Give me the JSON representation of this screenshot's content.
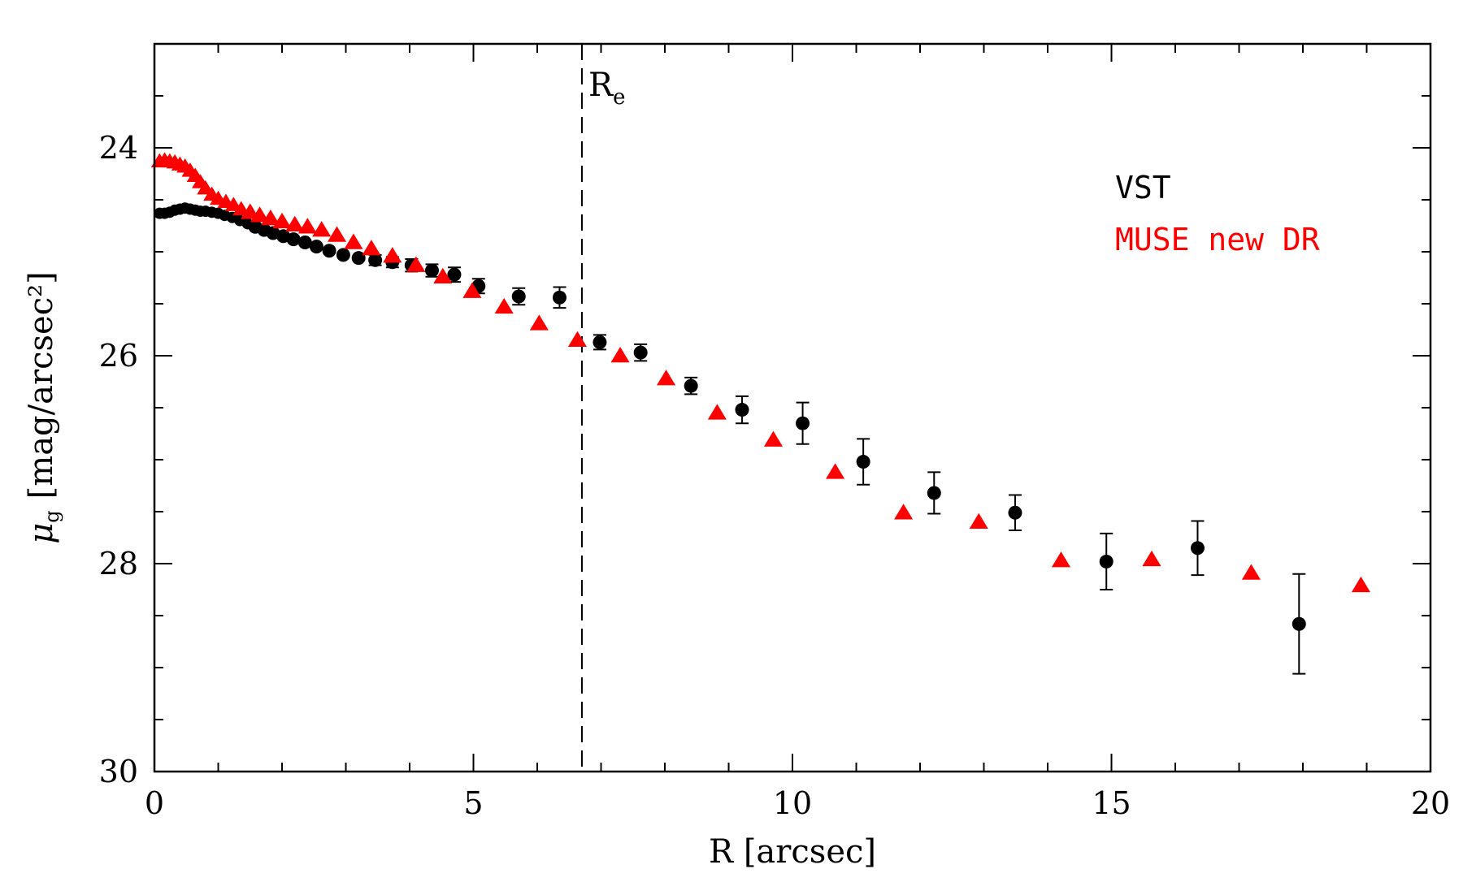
{
  "chart_data": {
    "type": "scatter",
    "title": "",
    "xlabel": "R [arcsec]",
    "ylabel_symbol": "μ",
    "ylabel_subscript": "g",
    "ylabel_units": "[mag/arcsec²]",
    "xlim": [
      0,
      20
    ],
    "ylim": [
      30,
      23
    ],
    "x_ticks_major": [
      0,
      5,
      10,
      15,
      20
    ],
    "x_tick_labels": [
      "0",
      "5",
      "10",
      "15",
      "20"
    ],
    "y_ticks_major": [
      24,
      26,
      28,
      30
    ],
    "y_tick_labels": [
      "24",
      "26",
      "28",
      "30"
    ],
    "reference_line": {
      "x": 6.7,
      "label": "R",
      "label_subscript": "e",
      "style": "dashed"
    },
    "legend_placement": "top-right",
    "series": [
      {
        "name": "VST",
        "color": "#000000",
        "marker": "circle",
        "x": [
          0.08,
          0.16,
          0.24,
          0.32,
          0.4,
          0.48,
          0.56,
          0.64,
          0.72,
          0.8,
          0.9,
          1.0,
          1.1,
          1.22,
          1.34,
          1.46,
          1.58,
          1.72,
          1.86,
          2.02,
          2.18,
          2.36,
          2.54,
          2.74,
          2.96,
          3.2,
          3.46,
          3.73,
          4.03,
          4.35,
          4.7,
          5.08,
          5.71,
          6.35,
          6.98,
          7.62,
          8.41,
          9.21,
          10.16,
          11.11,
          12.22,
          13.49,
          14.92,
          16.35,
          17.94
        ],
        "y": [
          24.63,
          24.63,
          24.62,
          24.6,
          24.59,
          24.58,
          24.59,
          24.6,
          24.61,
          24.61,
          24.62,
          24.63,
          24.65,
          24.67,
          24.7,
          24.73,
          24.76,
          24.79,
          24.82,
          24.85,
          24.88,
          24.91,
          24.95,
          24.99,
          25.03,
          25.06,
          25.08,
          25.1,
          25.13,
          25.18,
          25.22,
          25.33,
          25.43,
          25.44,
          25.87,
          25.97,
          26.29,
          26.52,
          26.65,
          27.02,
          27.32,
          27.51,
          27.98,
          27.85,
          28.58
        ],
        "err": [
          0.02,
          0.02,
          0.02,
          0.02,
          0.02,
          0.02,
          0.02,
          0.02,
          0.02,
          0.02,
          0.02,
          0.02,
          0.02,
          0.02,
          0.03,
          0.03,
          0.03,
          0.03,
          0.03,
          0.03,
          0.03,
          0.03,
          0.04,
          0.04,
          0.04,
          0.04,
          0.05,
          0.05,
          0.06,
          0.06,
          0.07,
          0.07,
          0.08,
          0.1,
          0.07,
          0.08,
          0.08,
          0.13,
          0.2,
          0.22,
          0.2,
          0.17,
          0.27,
          0.26,
          0.48
        ]
      },
      {
        "name": "MUSE new DR",
        "color": "#ff0000",
        "marker": "triangle",
        "x": [
          0.08,
          0.16,
          0.24,
          0.32,
          0.4,
          0.48,
          0.56,
          0.64,
          0.72,
          0.8,
          0.9,
          1.0,
          1.12,
          1.24,
          1.36,
          1.5,
          1.65,
          1.82,
          2.0,
          2.2,
          2.4,
          2.62,
          2.86,
          3.12,
          3.4,
          3.73,
          4.1,
          4.52,
          4.98,
          5.48,
          6.03,
          6.63,
          7.3,
          8.02,
          8.82,
          9.7,
          10.67,
          11.74,
          12.92,
          14.21,
          15.63,
          17.19,
          18.91
        ],
        "y": [
          24.13,
          24.12,
          24.13,
          24.14,
          24.16,
          24.18,
          24.22,
          24.27,
          24.33,
          24.39,
          24.45,
          24.49,
          24.52,
          24.55,
          24.59,
          24.62,
          24.65,
          24.68,
          24.71,
          24.74,
          24.76,
          24.79,
          24.84,
          24.91,
          24.97,
          25.04,
          25.13,
          25.24,
          25.38,
          25.53,
          25.69,
          25.85,
          26.0,
          26.22,
          26.55,
          26.81,
          27.12,
          27.51,
          27.6,
          27.97,
          27.96,
          28.09,
          28.21
        ]
      }
    ]
  }
}
